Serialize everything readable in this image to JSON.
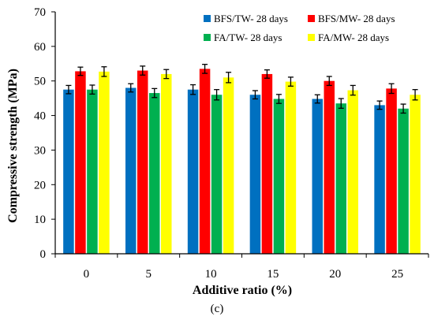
{
  "chart_data": {
    "type": "bar",
    "categories": [
      "0",
      "5",
      "10",
      "15",
      "20",
      "25"
    ],
    "xlabel": "Additive ratio (%)",
    "ylabel": "Compressive strength (MPa)",
    "ylim": [
      0,
      70
    ],
    "yticks": [
      "0",
      "10",
      "20",
      "30",
      "40",
      "50",
      "60",
      "70"
    ],
    "grid": false,
    "legend_position": "top-right",
    "series": [
      {
        "name": "BFS/TW- 28 days",
        "color": "#0070c0",
        "values": [
          47.5,
          48.0,
          47.5,
          46.0,
          44.8,
          43.0
        ],
        "errors": [
          1.2,
          1.2,
          1.4,
          1.2,
          1.2,
          1.2
        ]
      },
      {
        "name": "BFS/MW- 28 days",
        "color": "#ff0000",
        "values": [
          52.8,
          53.0,
          53.5,
          52.0,
          50.0,
          47.8
        ],
        "errors": [
          1.2,
          1.3,
          1.3,
          1.2,
          1.3,
          1.4
        ]
      },
      {
        "name": "FA/TW- 28 days",
        "color": "#00b050",
        "values": [
          47.5,
          46.5,
          46.0,
          44.8,
          43.5,
          42.0
        ],
        "errors": [
          1.3,
          1.3,
          1.5,
          1.3,
          1.4,
          1.3
        ]
      },
      {
        "name": "FA/MW- 28 days",
        "color": "#ffff00",
        "values": [
          52.7,
          52.0,
          51.0,
          49.8,
          47.3,
          46.0
        ],
        "errors": [
          1.4,
          1.3,
          1.5,
          1.3,
          1.4,
          1.5
        ]
      }
    ]
  },
  "caption": "(c)"
}
